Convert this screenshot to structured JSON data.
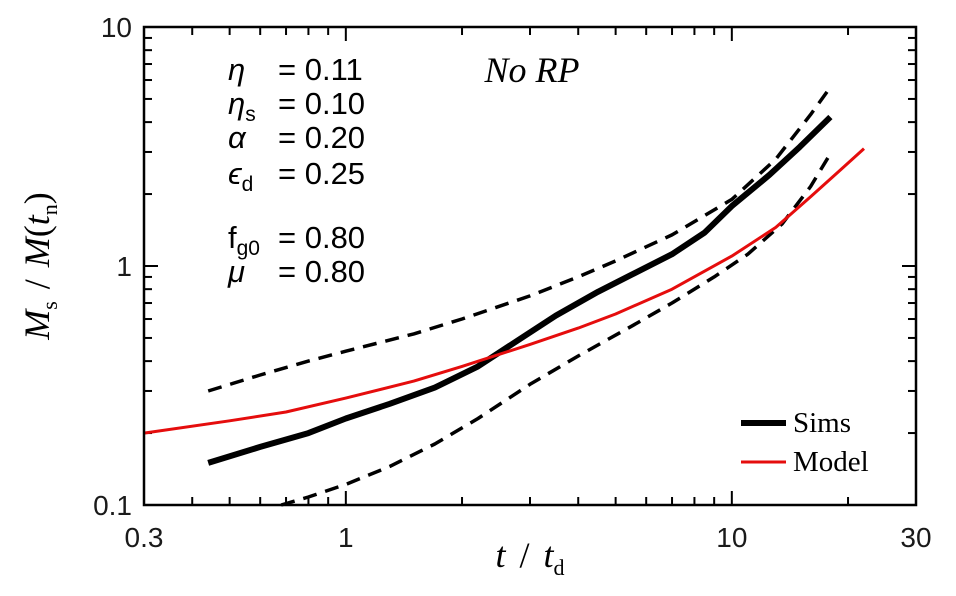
{
  "chart_data": {
    "type": "line",
    "title": "No RP",
    "xlabel": "t / t_d",
    "ylabel": "M_s / M(t_n)",
    "xscale": "log",
    "yscale": "log",
    "xlim": [
      0.3,
      30
    ],
    "ylim": [
      0.1,
      10
    ],
    "x_ticks": [
      {
        "value": 0.3,
        "label": "0.3"
      },
      {
        "value": 1,
        "label": "1"
      },
      {
        "value": 10,
        "label": "10"
      },
      {
        "value": 30,
        "label": "30"
      }
    ],
    "y_ticks": [
      {
        "value": 0.1,
        "label": "0.1"
      },
      {
        "value": 1,
        "label": "1"
      },
      {
        "value": 10,
        "label": "10"
      }
    ],
    "parameters": [
      {
        "symbol": "η",
        "sub": "",
        "value": "= 0.11"
      },
      {
        "symbol": "η",
        "sub": "s",
        "value": "= 0.10"
      },
      {
        "symbol": "α",
        "sub": "",
        "value": "= 0.20"
      },
      {
        "symbol": "ϵ",
        "sub": "d",
        "value": "= 0.25"
      },
      {
        "symbol": "f",
        "sub": "g0",
        "value": "= 0.80"
      },
      {
        "symbol": "μ",
        "sub": "",
        "value": "= 0.80"
      }
    ],
    "legend": {
      "position": "bottom-right",
      "entries": [
        "Sims",
        "Model"
      ]
    },
    "series": [
      {
        "name": "Sims",
        "style": "solid-thick",
        "color": "#000000",
        "x": [
          0.44,
          0.6,
          0.8,
          1.0,
          1.3,
          1.7,
          2.2,
          2.8,
          3.5,
          4.5,
          5.5,
          7.0,
          8.5,
          10.0,
          12.5,
          15.0,
          18.0
        ],
        "y": [
          0.15,
          0.175,
          0.2,
          0.23,
          0.265,
          0.31,
          0.38,
          0.49,
          0.62,
          0.78,
          0.92,
          1.12,
          1.38,
          1.78,
          2.4,
          3.15,
          4.2
        ]
      },
      {
        "name": "Sims upper",
        "style": "dashed",
        "color": "#000000",
        "x": [
          0.44,
          0.6,
          0.8,
          1.0,
          1.5,
          2.0,
          3.0,
          4.0,
          5.0,
          7.0,
          10.0,
          13.0,
          16.0,
          18.0
        ],
        "y": [
          0.3,
          0.35,
          0.4,
          0.44,
          0.52,
          0.6,
          0.75,
          0.9,
          1.05,
          1.35,
          1.9,
          2.8,
          4.3,
          5.6
        ]
      },
      {
        "name": "Sims lower",
        "style": "dashed",
        "color": "#000000",
        "x": [
          0.68,
          0.8,
          1.0,
          1.3,
          1.7,
          2.2,
          3.0,
          4.0,
          5.5,
          7.0,
          9.0,
          11.0,
          13.5,
          16.0,
          18.0
        ],
        "y": [
          0.1,
          0.108,
          0.122,
          0.145,
          0.18,
          0.23,
          0.32,
          0.42,
          0.56,
          0.7,
          0.9,
          1.12,
          1.5,
          2.15,
          2.95
        ]
      },
      {
        "name": "Model",
        "style": "solid",
        "color": "#e50d0d",
        "x": [
          0.3,
          0.5,
          0.7,
          1.0,
          1.5,
          2.0,
          3.0,
          4.0,
          5.0,
          7.0,
          10.0,
          13.0,
          16.0,
          19.0,
          22.0
        ],
        "y": [
          0.2,
          0.225,
          0.245,
          0.28,
          0.33,
          0.38,
          0.47,
          0.55,
          0.63,
          0.8,
          1.1,
          1.45,
          1.95,
          2.5,
          3.1
        ]
      }
    ]
  }
}
